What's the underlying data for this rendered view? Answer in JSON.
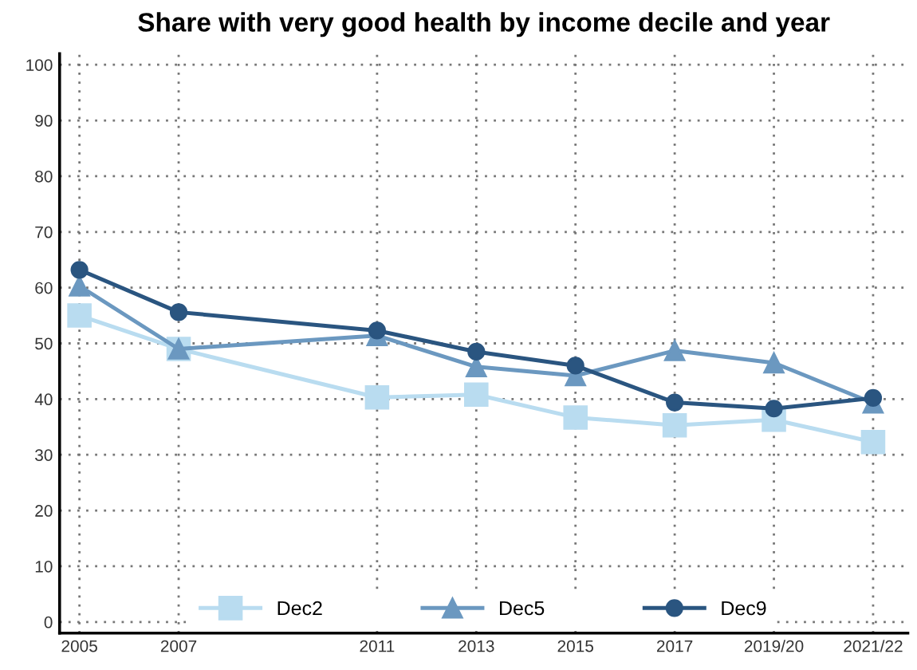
{
  "chart_data": {
    "type": "line",
    "title": "Share with very good health by income decile and year",
    "x": [
      2005,
      2007,
      2011,
      2013,
      2015,
      2017,
      2019,
      2021
    ],
    "series": [
      {
        "name": "Dec2",
        "color": "#b9dcf0",
        "marker": "square",
        "values": [
          55,
          49,
          40.3,
          40.8,
          36.7,
          35.3,
          36.3,
          32.3
        ]
      },
      {
        "name": "Dec5",
        "color": "#6b98c0",
        "marker": "triangle",
        "values": [
          60.3,
          49,
          51.4,
          45.8,
          44.2,
          48.7,
          46.5,
          39.3
        ]
      },
      {
        "name": "Dec9",
        "color": "#2a5580",
        "marker": "circle",
        "values": [
          63.2,
          55.6,
          52.3,
          48.5,
          46,
          39.4,
          38.3,
          40.2
        ]
      }
    ],
    "xlim": [
      2004.6,
      2021.7
    ],
    "ylim": [
      -2,
      102
    ],
    "xticks": [
      2005,
      2007,
      2011,
      2013,
      2015,
      2017,
      {
        "value": 2019,
        "label": "2019/20"
      },
      {
        "value": 2021,
        "label": "2021/22"
      }
    ],
    "yticks": [
      0,
      10,
      20,
      30,
      40,
      50,
      60,
      70,
      80,
      90,
      100
    ],
    "grid": true,
    "legend": "bottom",
    "line_style": "solid"
  }
}
